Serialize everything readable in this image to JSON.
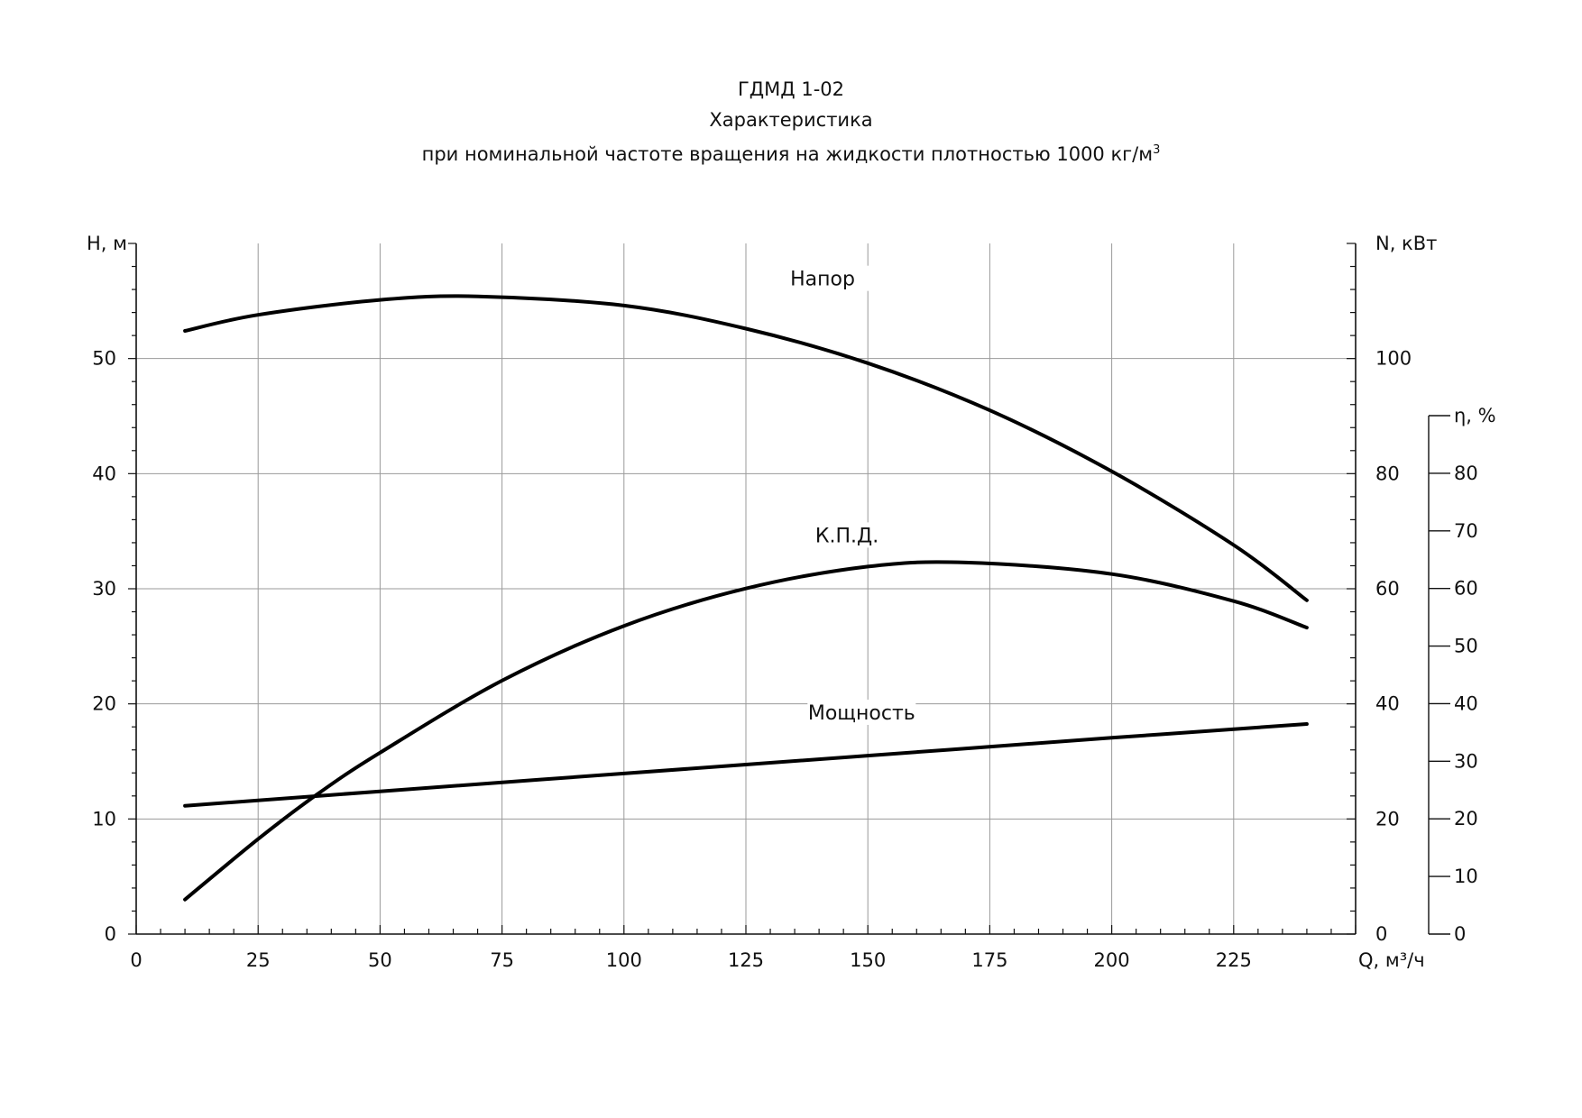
{
  "header": {
    "title": "ГДМД 1-02",
    "subtitle": "Характеристика",
    "conditions": "при номинальной  частоте  вращения  на жидкости  плотностью  1000  кг/м",
    "conditions_sup": "3"
  },
  "chart_data": {
    "type": "line",
    "title": "ГДМД 1-02",
    "xlabel": "Q, м³/ч",
    "xlim": [
      0,
      250
    ],
    "x_ticks": [
      0,
      25,
      50,
      75,
      100,
      125,
      150,
      175,
      200,
      225
    ],
    "grid": true,
    "axes": {
      "h": {
        "label": "H,  м",
        "range": [
          0,
          60
        ],
        "ticks": [
          0,
          10,
          20,
          30,
          40,
          50
        ],
        "side": "left"
      },
      "n": {
        "label": "N, кВт",
        "range": [
          0,
          120
        ],
        "ticks": [
          0,
          20,
          40,
          60,
          80,
          100
        ],
        "side": "right"
      },
      "eta": {
        "label": "η, %",
        "range": [
          0,
          90
        ],
        "ticks": [
          0,
          10,
          20,
          30,
          40,
          50,
          60,
          70,
          80
        ],
        "side": "right-outer"
      }
    },
    "series": [
      {
        "name": "Напор",
        "axis": "h",
        "x": [
          10,
          25,
          50,
          70,
          100,
          125,
          150,
          175,
          200,
          225,
          240
        ],
        "values": [
          52.4,
          53.8,
          55.1,
          55.4,
          54.6,
          52.6,
          49.6,
          45.5,
          40.2,
          33.8,
          29.0
        ]
      },
      {
        "name": "К.П.Д.",
        "axis": "eta",
        "x": [
          10,
          25,
          37,
          50,
          75,
          100,
          125,
          150,
          170,
          200,
          225,
          240
        ],
        "values": [
          6.0,
          16.5,
          24.2,
          31.5,
          44.0,
          53.5,
          60.0,
          63.8,
          64.5,
          62.5,
          57.8,
          53.2
        ]
      },
      {
        "name": "Мощность",
        "axis": "n",
        "x": [
          10,
          50,
          100,
          150,
          200,
          240
        ],
        "values": [
          22.3,
          24.8,
          27.9,
          31.0,
          34.1,
          36.5
        ]
      }
    ]
  }
}
